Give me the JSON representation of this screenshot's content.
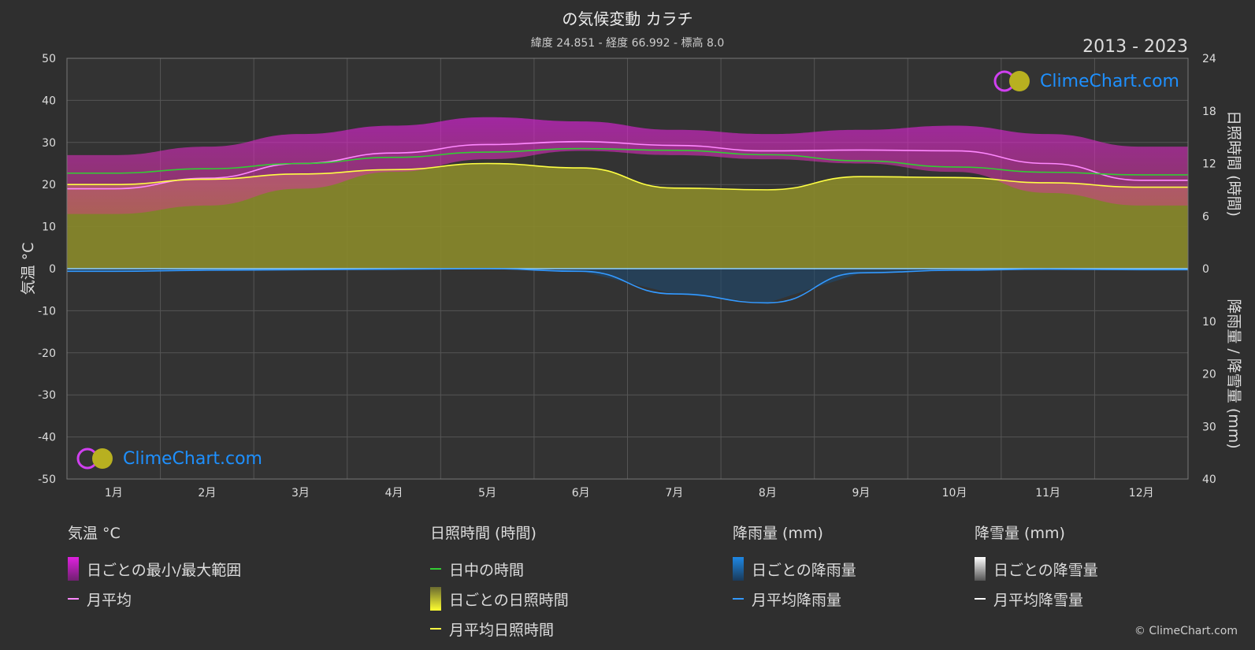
{
  "title": "の気候変動 カラチ",
  "subtitle": "緯度 24.851 - 経度 66.992 - 標高 8.0",
  "period": "2013 - 2023",
  "brand": "ClimeChart.com",
  "copyright": "© ClimeChart.com",
  "colors": {
    "background": "#2f2f2f",
    "temp_range": "#e020e0",
    "temp_avg": "#ff88ff",
    "daylight": "#33cc33",
    "sunshine_fill": "#8a8a2a",
    "sunshine_avg": "#ffff44",
    "rain": "#1e88e5",
    "rain_avg": "#3399ff",
    "snow_avg": "#ffffff"
  },
  "chart_data": {
    "type": "line",
    "categories": [
      "1月",
      "2月",
      "3月",
      "4月",
      "5月",
      "6月",
      "7月",
      "8月",
      "9月",
      "10月",
      "11月",
      "12月"
    ],
    "left_axis": {
      "label": "気温 °C",
      "ticks": [
        50,
        40,
        30,
        20,
        10,
        0,
        -10,
        -20,
        -30,
        -40,
        -50
      ],
      "range": [
        -50,
        50
      ]
    },
    "right_axis_top": {
      "label": "日照時間 (時間)",
      "ticks": [
        24,
        18,
        12,
        6,
        0
      ],
      "range": [
        0,
        24
      ]
    },
    "right_axis_bottom": {
      "label": "降雨量 / 降雪量 (mm)",
      "ticks": [
        0,
        10,
        20,
        30,
        40
      ],
      "range": [
        0,
        40
      ]
    },
    "series": [
      {
        "name": "月平均",
        "axis": "temp",
        "values": [
          19.0,
          21.5,
          25.0,
          27.5,
          29.5,
          30.2,
          29.3,
          28.0,
          28.2,
          28.0,
          25.0,
          21.0
        ]
      },
      {
        "name": "日中の時間",
        "axis": "sun",
        "values": [
          10.9,
          11.4,
          12.0,
          12.7,
          13.3,
          13.7,
          13.5,
          13.0,
          12.3,
          11.6,
          11.0,
          10.7
        ]
      },
      {
        "name": "月平均日照時間",
        "axis": "sun",
        "values": [
          9.6,
          10.2,
          10.8,
          11.3,
          12.0,
          11.5,
          9.2,
          9.0,
          10.5,
          10.4,
          9.8,
          9.3
        ]
      },
      {
        "name": "月平均降雨量",
        "axis": "rain",
        "values": [
          0.5,
          0.3,
          0.2,
          0.1,
          0.0,
          0.5,
          4.8,
          6.5,
          0.8,
          0.3,
          0.1,
          0.2
        ]
      },
      {
        "name": "月平均降雪量",
        "axis": "rain",
        "values": [
          0,
          0,
          0,
          0,
          0,
          0,
          0,
          0,
          0,
          0,
          0,
          0
        ]
      }
    ],
    "temp_range": {
      "name": "日ごとの最小/最大範囲",
      "min": [
        13,
        15,
        19,
        23,
        26,
        28,
        27,
        26,
        25,
        23,
        18,
        15
      ],
      "max": [
        27,
        29,
        32,
        34,
        36,
        35,
        33,
        32,
        33,
        34,
        32,
        29
      ]
    },
    "daily_sunshine": {
      "name": "日ごとの日照時間"
    },
    "daily_rain": {
      "name": "日ごとの降雨量"
    },
    "daily_snow": {
      "name": "日ごとの降雪量"
    }
  },
  "legend": {
    "temp": {
      "title": "気温 °C",
      "items": [
        "日ごとの最小/最大範囲",
        "月平均"
      ]
    },
    "sun": {
      "title": "日照時間 (時間)",
      "items": [
        "日中の時間",
        "日ごとの日照時間",
        "月平均日照時間"
      ]
    },
    "rain": {
      "title": "降雨量 (mm)",
      "items": [
        "日ごとの降雨量",
        "月平均降雨量"
      ]
    },
    "snow": {
      "title": "降雪量 (mm)",
      "items": [
        "日ごとの降雪量",
        "月平均降雪量"
      ]
    }
  }
}
